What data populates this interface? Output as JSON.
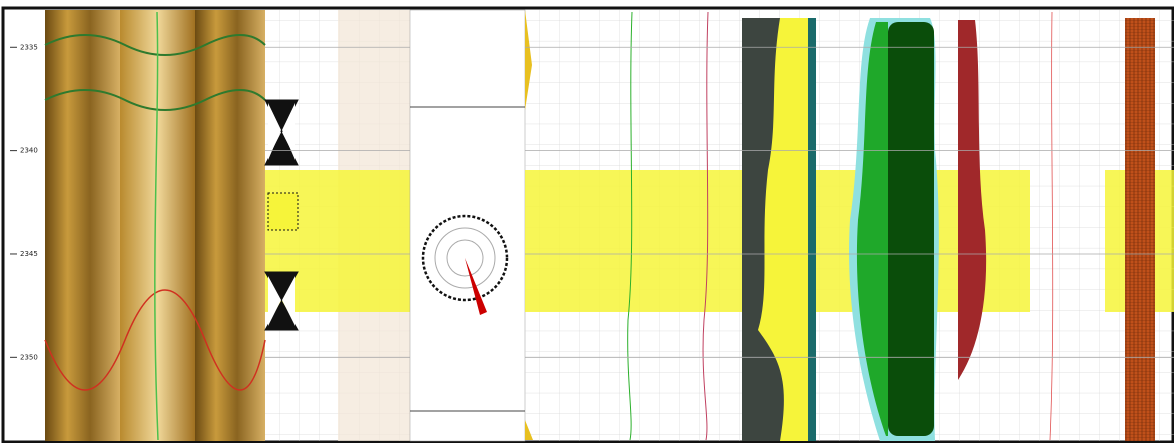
{
  "chart_data": {
    "type": "well-log",
    "ylim": [
      2333.1,
      2354.0
    ],
    "yticks": [
      2335,
      2340,
      2345,
      2350
    ]
  }
}
